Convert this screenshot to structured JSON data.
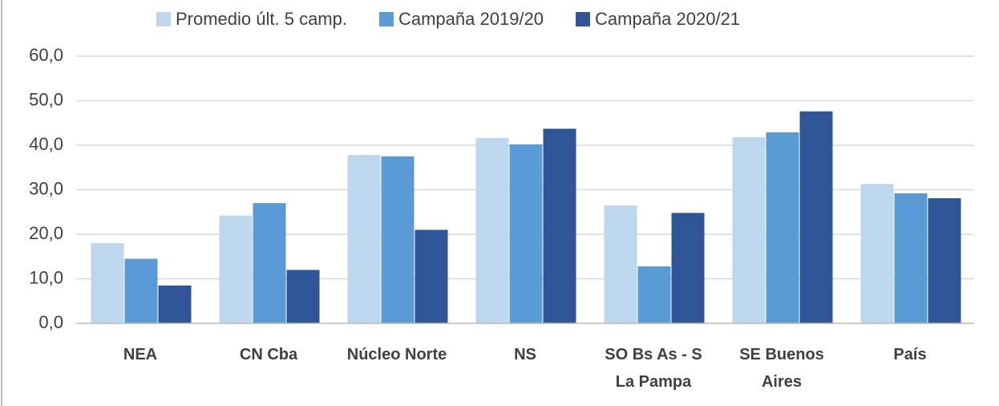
{
  "chart_data": {
    "type": "bar",
    "categories": [
      "NEA",
      "CN Cba",
      "Núcleo Norte",
      "NS",
      "SO Bs As - S\nLa Pampa",
      "SE Buenos\nAires",
      "País"
    ],
    "series": [
      {
        "name": "Promedio últ. 5 camp.",
        "color": "#bdd7ee",
        "values": [
          18.0,
          24.2,
          37.8,
          41.6,
          26.5,
          41.8,
          31.3
        ]
      },
      {
        "name": "Campaña 2019/20",
        "color": "#5b9bd5",
        "values": [
          14.5,
          27.0,
          37.5,
          40.2,
          12.8,
          42.9,
          29.2
        ]
      },
      {
        "name": "Campaña 2020/21",
        "color": "#2f5597",
        "values": [
          8.5,
          12.0,
          21.0,
          43.7,
          24.8,
          47.6,
          28.1
        ]
      }
    ],
    "ylim": [
      0,
      60
    ],
    "yticks": [
      {
        "value": 0,
        "label": "0,0"
      },
      {
        "value": 10,
        "label": "10,0"
      },
      {
        "value": 20,
        "label": "20,0"
      },
      {
        "value": 30,
        "label": "30,0"
      },
      {
        "value": 40,
        "label": "40,0"
      },
      {
        "value": 50,
        "label": "50,0"
      },
      {
        "value": 60,
        "label": "60,0"
      }
    ],
    "grid": true,
    "legend": "top"
  }
}
